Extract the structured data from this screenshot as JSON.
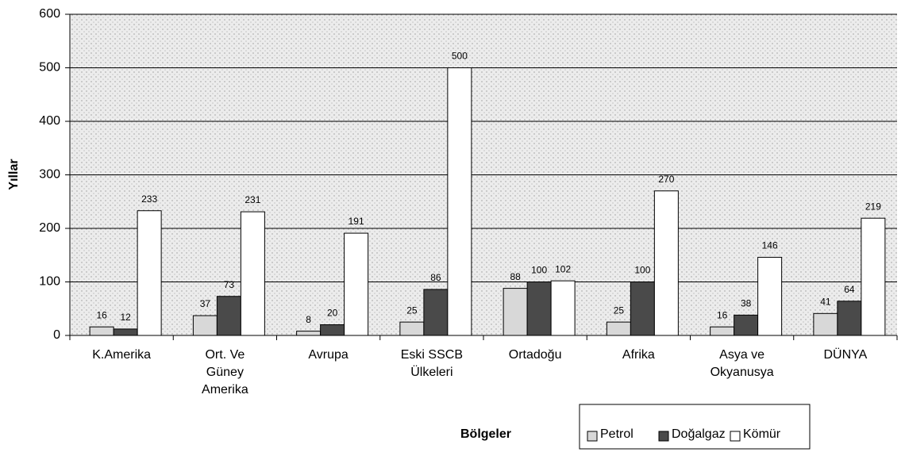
{
  "chart_data": {
    "type": "bar",
    "x_label": "Bölgeler",
    "y_label": "Yıllar",
    "categories": [
      "K.Amerika",
      "Ort. Ve Güney Amerika",
      "Avrupa",
      "Eski SSCB Ülkeleri",
      "Ortadoğu",
      "Afrika",
      "Asya ve Okyanusya",
      "DÜNYA"
    ],
    "series": [
      {
        "name": "Petrol",
        "color": "#d8d8d8",
        "values": [
          16,
          37,
          8,
          25,
          88,
          25,
          16,
          41
        ]
      },
      {
        "name": "Doğalgaz",
        "color": "#4a4a4a",
        "values": [
          12,
          73,
          20,
          86,
          100,
          100,
          38,
          64
        ]
      },
      {
        "name": "Kömür",
        "color": "#ffffff",
        "values": [
          233,
          231,
          191,
          500,
          102,
          270,
          146,
          219
        ]
      }
    ],
    "ylim": [
      0,
      600
    ],
    "yticks": [
      0,
      100,
      200,
      300,
      400,
      500,
      600
    ],
    "grid": true
  }
}
